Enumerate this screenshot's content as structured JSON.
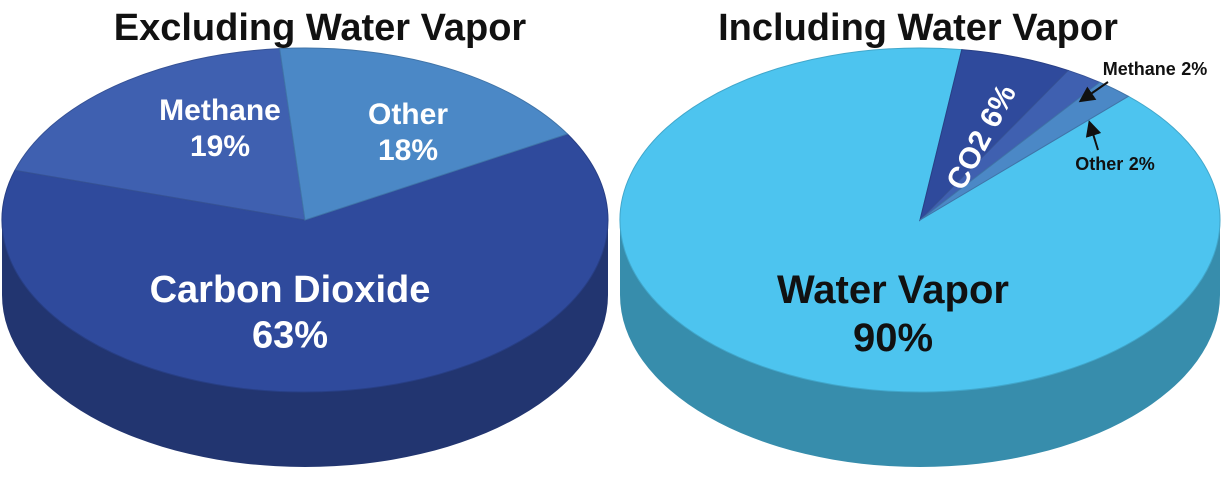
{
  "chart_data": [
    {
      "type": "pie",
      "title": "Excluding Water Vapor",
      "categories": [
        "Carbon Dioxide",
        "Methane",
        "Other"
      ],
      "values": [
        63,
        19,
        18
      ],
      "value_labels": [
        "63%",
        "19%",
        "18%"
      ],
      "colors": [
        "#2f4a9c",
        "#3f60b0",
        "#4b88c6"
      ]
    },
    {
      "type": "pie",
      "title": "Including Water Vapor",
      "categories": [
        "Water Vapor",
        "CO2",
        "Methane",
        "Other"
      ],
      "values": [
        90,
        6,
        2,
        2
      ],
      "value_labels": [
        "90%",
        "6%",
        "2%",
        "2%"
      ],
      "colors": [
        "#4dc4ef",
        "#2f4a9c",
        "#3f60b0",
        "#4b88c6"
      ]
    }
  ]
}
